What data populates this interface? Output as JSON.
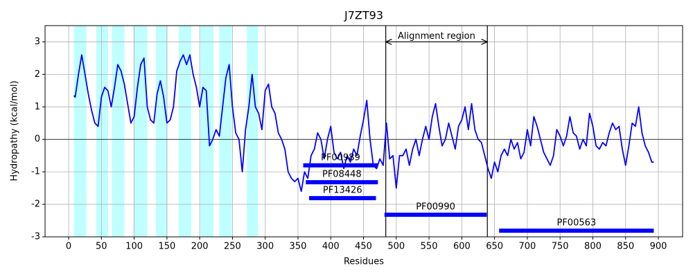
{
  "chart_data": {
    "type": "line",
    "title": "J7ZT93",
    "x_label": "Residues",
    "y_label": "Hydropathy (kcal/mol)",
    "color": "#0000ff",
    "xlim": [
      -36,
      937
    ],
    "ylim": [
      -3,
      3.5
    ],
    "xticks": [
      0,
      50,
      100,
      150,
      200,
      250,
      300,
      350,
      400,
      450,
      500,
      550,
      600,
      650,
      700,
      750,
      800,
      850,
      900
    ],
    "yticks": [
      -3,
      -2,
      -1,
      0,
      1,
      2,
      3
    ],
    "grid": true,
    "zero_line": 0,
    "shaded_color": "#bfffff",
    "shaded_regions": [
      [
        8,
        27
      ],
      [
        42,
        60
      ],
      [
        66,
        85
      ],
      [
        99,
        120
      ],
      [
        133,
        151
      ],
      [
        168,
        187
      ],
      [
        201,
        221
      ],
      [
        230,
        249
      ],
      [
        272,
        289
      ]
    ],
    "vlines": [
      484,
      639
    ],
    "annotation": {
      "text": "Alignment region",
      "x": [
        484,
        639
      ],
      "y": 3
    },
    "domain_color": "#0000ff",
    "domains": [
      {
        "name": "PF00989",
        "start": 358,
        "end": 472,
        "y": -0.8
      },
      {
        "name": "PF08448",
        "start": 362,
        "end": 472,
        "y": -1.32
      },
      {
        "name": "PF13426",
        "start": 367,
        "end": 469,
        "y": -1.81
      },
      {
        "name": "PF00990",
        "start": 482,
        "end": 638,
        "y": -2.32
      },
      {
        "name": "PF00563",
        "start": 657,
        "end": 893,
        "y": -2.81
      }
    ],
    "x": [
      8,
      10,
      15,
      20,
      25,
      30,
      35,
      40,
      45,
      50,
      55,
      60,
      65,
      70,
      75,
      80,
      85,
      90,
      95,
      100,
      105,
      110,
      115,
      120,
      125,
      130,
      135,
      140,
      145,
      150,
      155,
      160,
      165,
      170,
      175,
      180,
      185,
      190,
      195,
      200,
      205,
      210,
      215,
      220,
      225,
      230,
      235,
      240,
      245,
      250,
      255,
      260,
      265,
      270,
      275,
      280,
      285,
      290,
      295,
      300,
      305,
      310,
      315,
      320,
      325,
      330,
      335,
      340,
      345,
      350,
      355,
      360,
      365,
      370,
      375,
      380,
      385,
      390,
      395,
      400,
      405,
      410,
      415,
      420,
      425,
      430,
      435,
      440,
      445,
      450,
      455,
      460,
      465,
      470,
      475,
      480,
      485,
      490,
      495,
      500,
      505,
      510,
      515,
      520,
      525,
      530,
      535,
      540,
      545,
      550,
      555,
      560,
      565,
      570,
      575,
      580,
      585,
      590,
      595,
      600,
      605,
      610,
      615,
      620,
      625,
      630,
      635,
      640,
      645,
      650,
      655,
      660,
      665,
      670,
      675,
      680,
      685,
      690,
      695,
      700,
      705,
      710,
      715,
      720,
      725,
      730,
      735,
      740,
      745,
      750,
      755,
      760,
      765,
      770,
      775,
      780,
      785,
      790,
      795,
      800,
      805,
      810,
      815,
      820,
      825,
      830,
      835,
      840,
      845,
      850,
      855,
      860,
      865,
      870,
      875,
      880,
      885,
      890,
      893
    ],
    "values": [
      1.35,
      1.3,
      2.0,
      2.6,
      2.0,
      1.4,
      0.9,
      0.5,
      0.4,
      1.3,
      1.6,
      1.5,
      1.0,
      1.6,
      2.3,
      2.1,
      1.7,
      1.1,
      0.5,
      0.7,
      1.6,
      2.3,
      2.5,
      1.0,
      0.6,
      0.5,
      1.4,
      1.8,
      1.3,
      0.5,
      0.6,
      1.0,
      2.1,
      2.4,
      2.6,
      2.3,
      2.6,
      2.0,
      1.6,
      1.0,
      1.6,
      1.5,
      -0.2,
      0.0,
      0.3,
      0.1,
      1.0,
      1.9,
      2.3,
      1.0,
      0.2,
      0.0,
      -1.0,
      0.3,
      1.0,
      2.0,
      1.0,
      0.8,
      0.3,
      1.5,
      1.7,
      1.0,
      0.8,
      0.2,
      0.0,
      -0.3,
      -1.0,
      -1.2,
      -1.3,
      -1.2,
      -1.6,
      -1.0,
      -1.2,
      -0.5,
      -0.3,
      0.2,
      0.0,
      -0.6,
      0.0,
      0.4,
      -0.4,
      -0.6,
      -0.4,
      -0.9,
      -0.5,
      -0.7,
      -0.3,
      -0.5,
      0.1,
      0.6,
      1.2,
      0.0,
      -0.8,
      -0.9,
      -0.6,
      -0.8,
      0.5,
      -0.6,
      -0.5,
      -1.5,
      -0.5,
      -0.5,
      -0.3,
      -0.8,
      -0.3,
      0.0,
      -0.5,
      0.0,
      0.4,
      0.0,
      0.7,
      1.1,
      0.4,
      -0.2,
      0.0,
      0.5,
      0.1,
      -0.3,
      0.4,
      0.6,
      1.0,
      0.3,
      1.1,
      0.3,
      0.0,
      -0.1,
      -0.5,
      -0.9,
      -1.2,
      -0.7,
      -1.0,
      -0.5,
      -0.3,
      -0.5,
      0.0,
      -0.3,
      -0.1,
      -0.6,
      -0.4,
      0.3,
      -0.2,
      0.7,
      0.4,
      0.0,
      -0.4,
      -0.6,
      -0.8,
      -0.5,
      0.3,
      0.1,
      -0.2,
      0.1,
      0.7,
      0.2,
      0.1,
      -0.3,
      0.0,
      -0.2,
      0.8,
      0.4,
      -0.2,
      -0.3,
      -0.1,
      -0.2,
      0.2,
      0.5,
      0.3,
      0.4,
      -0.3,
      -0.8,
      -0.2,
      0.5,
      0.4,
      1.0,
      0.2,
      -0.2,
      -0.4,
      -0.7,
      -0.7
    ]
  }
}
